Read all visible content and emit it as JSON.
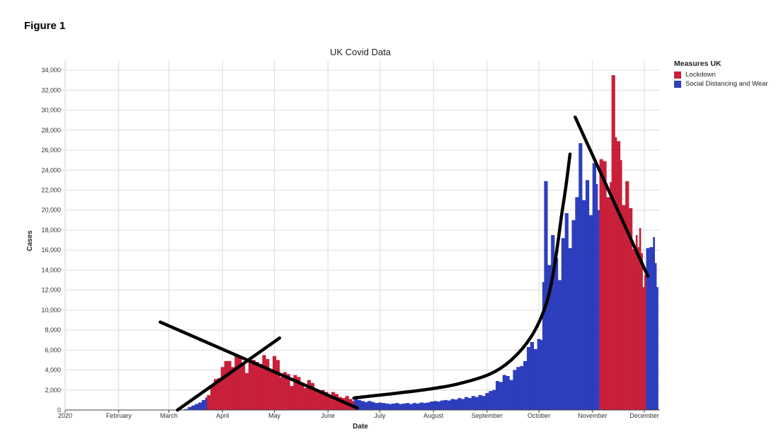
{
  "figure": {
    "label": "Figure 1"
  },
  "chart_data": {
    "type": "bar",
    "title": "UK Covid Data",
    "xlabel": "Date",
    "ylabel": "Cases",
    "ylim": [
      0,
      35000
    ],
    "yticks": [
      0,
      2000,
      4000,
      6000,
      8000,
      10000,
      12000,
      14000,
      16000,
      18000,
      20000,
      22000,
      24000,
      26000,
      28000,
      30000,
      32000,
      34000
    ],
    "xlim": [
      "2020-01-01",
      "2020-12-10"
    ],
    "xticks": [
      {
        "date": "2020-01-01",
        "label": "2020"
      },
      {
        "date": "2020-02-01",
        "label": "February"
      },
      {
        "date": "2020-03-01",
        "label": "March"
      },
      {
        "date": "2020-04-01",
        "label": "April"
      },
      {
        "date": "2020-05-01",
        "label": "May"
      },
      {
        "date": "2020-06-01",
        "label": "June"
      },
      {
        "date": "2020-07-01",
        "label": "July"
      },
      {
        "date": "2020-08-01",
        "label": "August"
      },
      {
        "date": "2020-09-01",
        "label": "September"
      },
      {
        "date": "2020-10-01",
        "label": "October"
      },
      {
        "date": "2020-11-01",
        "label": "November"
      },
      {
        "date": "2020-12-01",
        "label": "December"
      }
    ],
    "grid": true,
    "legend": {
      "title": "Measures UK",
      "placement": "right",
      "entries": [
        {
          "name": "Lockdown",
          "color": "#c8203a"
        },
        {
          "name": "Social Distancing and Wear",
          "color": "#2d3ebd"
        }
      ]
    },
    "series": [
      {
        "name": "Social Distancing and Wear",
        "color": "#2d3ebd",
        "points": [
          [
            "2020-03-10",
            100
          ],
          [
            "2020-03-12",
            300
          ],
          [
            "2020-03-14",
            450
          ],
          [
            "2020-03-16",
            600
          ],
          [
            "2020-03-18",
            750
          ],
          [
            "2020-03-20",
            1000
          ],
          [
            "2020-03-22",
            1250
          ]
        ]
      },
      {
        "name": "Lockdown",
        "color": "#c8203a",
        "points": [
          [
            "2020-03-23",
            1500
          ],
          [
            "2020-03-25",
            2500
          ],
          [
            "2020-03-27",
            3100
          ],
          [
            "2020-03-29",
            3200
          ],
          [
            "2020-03-31",
            4300
          ],
          [
            "2020-04-02",
            4900
          ],
          [
            "2020-04-04",
            4900
          ],
          [
            "2020-04-06",
            4300
          ],
          [
            "2020-04-08",
            5400
          ],
          [
            "2020-04-10",
            5300
          ],
          [
            "2020-04-12",
            4700
          ],
          [
            "2020-04-14",
            3700
          ],
          [
            "2020-04-16",
            4800
          ],
          [
            "2020-04-18",
            5000
          ],
          [
            "2020-04-20",
            4800
          ],
          [
            "2020-04-22",
            4600
          ],
          [
            "2020-04-24",
            5500
          ],
          [
            "2020-04-26",
            5100
          ],
          [
            "2020-04-28",
            4000
          ],
          [
            "2020-04-30",
            5400
          ],
          [
            "2020-05-02",
            5000
          ],
          [
            "2020-05-04",
            3300
          ],
          [
            "2020-05-06",
            3800
          ],
          [
            "2020-05-08",
            3600
          ],
          [
            "2020-05-10",
            2400
          ],
          [
            "2020-05-12",
            3500
          ],
          [
            "2020-05-14",
            3300
          ],
          [
            "2020-05-16",
            2600
          ],
          [
            "2020-05-18",
            2200
          ],
          [
            "2020-05-20",
            3000
          ],
          [
            "2020-05-22",
            2700
          ],
          [
            "2020-05-24",
            2100
          ],
          [
            "2020-05-26",
            1700
          ],
          [
            "2020-05-28",
            2000
          ],
          [
            "2020-05-30",
            1800
          ],
          [
            "2020-06-01",
            1500
          ],
          [
            "2020-06-03",
            1800
          ],
          [
            "2020-06-05",
            1600
          ],
          [
            "2020-06-07",
            1300
          ],
          [
            "2020-06-09",
            1200
          ],
          [
            "2020-06-11",
            1400
          ],
          [
            "2020-06-13",
            1100
          ],
          [
            "2020-06-15",
            900
          ]
        ]
      },
      {
        "name": "Social Distancing and Wear",
        "color": "#2d3ebd",
        "points": [
          [
            "2020-06-16",
            1100
          ],
          [
            "2020-06-18",
            1000
          ],
          [
            "2020-06-20",
            900
          ],
          [
            "2020-06-22",
            800
          ],
          [
            "2020-06-24",
            900
          ],
          [
            "2020-06-26",
            800
          ],
          [
            "2020-06-28",
            700
          ],
          [
            "2020-06-30",
            750
          ],
          [
            "2020-07-02",
            700
          ],
          [
            "2020-07-04",
            650
          ],
          [
            "2020-07-06",
            600
          ],
          [
            "2020-07-08",
            650
          ],
          [
            "2020-07-10",
            700
          ],
          [
            "2020-07-12",
            600
          ],
          [
            "2020-07-14",
            650
          ],
          [
            "2020-07-16",
            700
          ],
          [
            "2020-07-18",
            600
          ],
          [
            "2020-07-20",
            700
          ],
          [
            "2020-07-22",
            650
          ],
          [
            "2020-07-24",
            750
          ],
          [
            "2020-07-26",
            700
          ],
          [
            "2020-07-28",
            750
          ],
          [
            "2020-07-30",
            850
          ],
          [
            "2020-08-01",
            900
          ],
          [
            "2020-08-03",
            850
          ],
          [
            "2020-08-05",
            950
          ],
          [
            "2020-08-07",
            1000
          ],
          [
            "2020-08-09",
            950
          ],
          [
            "2020-08-11",
            1100
          ],
          [
            "2020-08-13",
            1050
          ],
          [
            "2020-08-15",
            1200
          ],
          [
            "2020-08-17",
            1100
          ],
          [
            "2020-08-19",
            1300
          ],
          [
            "2020-08-21",
            1200
          ],
          [
            "2020-08-23",
            1400
          ],
          [
            "2020-08-25",
            1300
          ],
          [
            "2020-08-27",
            1500
          ],
          [
            "2020-08-29",
            1400
          ],
          [
            "2020-08-31",
            1700
          ],
          [
            "2020-09-02",
            1900
          ],
          [
            "2020-09-04",
            2000
          ],
          [
            "2020-09-06",
            2900
          ],
          [
            "2020-09-08",
            2800
          ],
          [
            "2020-09-10",
            3500
          ],
          [
            "2020-09-12",
            3400
          ],
          [
            "2020-09-14",
            3000
          ],
          [
            "2020-09-16",
            4000
          ],
          [
            "2020-09-18",
            4300
          ],
          [
            "2020-09-20",
            4400
          ],
          [
            "2020-09-22",
            4900
          ],
          [
            "2020-09-24",
            6300
          ],
          [
            "2020-09-26",
            6800
          ],
          [
            "2020-09-28",
            6100
          ],
          [
            "2020-09-30",
            7100
          ],
          [
            "2020-10-02",
            7000
          ],
          [
            "2020-10-03",
            12800
          ],
          [
            "2020-10-04",
            22900
          ],
          [
            "2020-10-06",
            14500
          ],
          [
            "2020-10-08",
            17500
          ],
          [
            "2020-10-10",
            15200
          ],
          [
            "2020-10-12",
            13000
          ],
          [
            "2020-10-14",
            17200
          ],
          [
            "2020-10-16",
            19700
          ],
          [
            "2020-10-18",
            16200
          ],
          [
            "2020-10-20",
            19000
          ],
          [
            "2020-10-22",
            21300
          ],
          [
            "2020-10-24",
            26700
          ],
          [
            "2020-10-26",
            21000
          ],
          [
            "2020-10-28",
            23000
          ],
          [
            "2020-10-30",
            19500
          ],
          [
            "2020-11-01",
            24700
          ],
          [
            "2020-11-03",
            22600
          ],
          [
            "2020-11-04",
            20000
          ]
        ]
      },
      {
        "name": "Lockdown",
        "color": "#c8203a",
        "points": [
          [
            "2020-11-05",
            25100
          ],
          [
            "2020-11-07",
            24900
          ],
          [
            "2020-11-09",
            21300
          ],
          [
            "2020-11-11",
            22800
          ],
          [
            "2020-11-12",
            33500
          ],
          [
            "2020-11-14",
            27300
          ],
          [
            "2020-11-15",
            26900
          ],
          [
            "2020-11-17",
            25000
          ],
          [
            "2020-11-18",
            20500
          ],
          [
            "2020-11-20",
            22900
          ],
          [
            "2020-11-22",
            20200
          ],
          [
            "2020-11-24",
            16100
          ],
          [
            "2020-11-26",
            17500
          ],
          [
            "2020-11-27",
            16300
          ],
          [
            "2020-11-28",
            18200
          ],
          [
            "2020-11-29",
            15700
          ],
          [
            "2020-11-30",
            12300
          ],
          [
            "2020-12-01",
            13500
          ]
        ]
      },
      {
        "name": "Social Distancing and Wear",
        "color": "#2d3ebd",
        "points": [
          [
            "2020-12-02",
            16200
          ],
          [
            "2020-12-04",
            16300
          ],
          [
            "2020-12-06",
            17300
          ],
          [
            "2020-12-07",
            14700
          ],
          [
            "2020-12-08",
            12300
          ]
        ]
      }
    ],
    "annotations": [
      {
        "type": "line",
        "points": [
          [
            "2020-02-25",
            8800
          ],
          [
            "2020-06-18",
            200
          ]
        ]
      },
      {
        "type": "line",
        "points": [
          [
            "2020-03-06",
            0
          ],
          [
            "2020-05-04",
            7200
          ]
        ]
      },
      {
        "type": "curve",
        "points": [
          [
            "2020-06-16",
            1200
          ],
          [
            "2020-08-15",
            2600
          ],
          [
            "2020-09-15",
            5000
          ],
          [
            "2020-10-05",
            10500
          ],
          [
            "2020-10-15",
            20500
          ],
          [
            "2020-10-19",
            25600
          ]
        ]
      },
      {
        "type": "line",
        "points": [
          [
            "2020-10-22",
            29300
          ],
          [
            "2020-12-03",
            13400
          ]
        ]
      }
    ]
  }
}
